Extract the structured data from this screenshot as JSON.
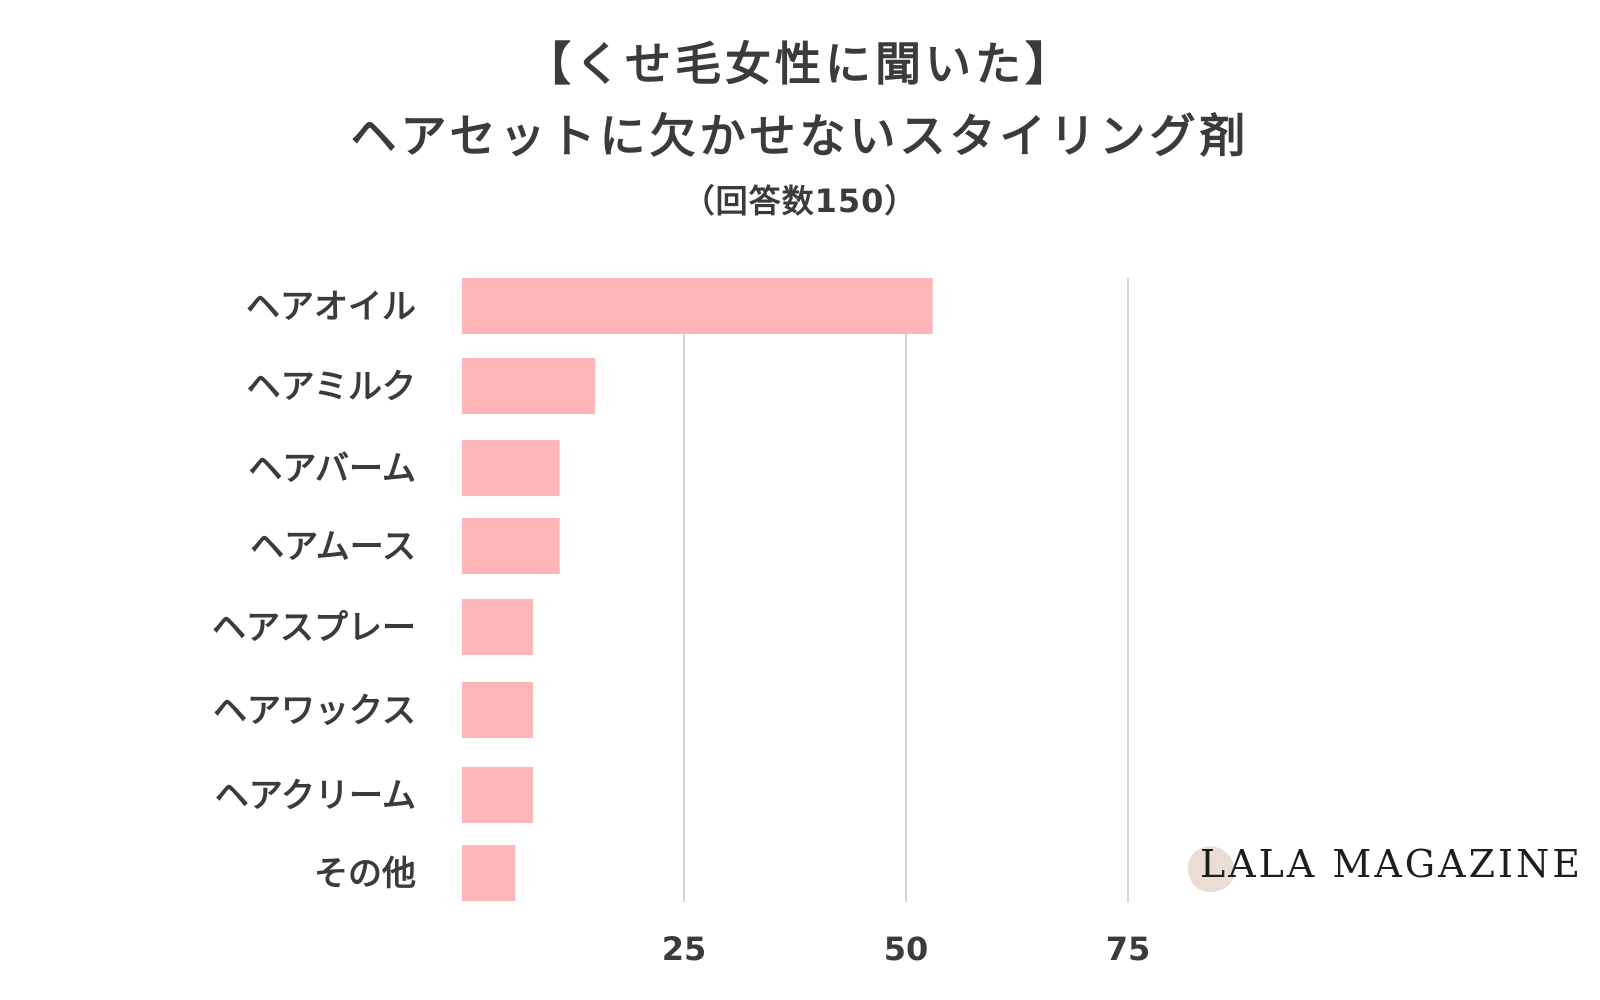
{
  "chart_data": {
    "type": "bar",
    "orientation": "horizontal",
    "title_line1": "【くせ毛女性に聞いた】",
    "title_line2": "ヘアセットに欠かせないスタイリング剤",
    "subtitle": "（回答数150）",
    "categories": [
      "ヘアオイル",
      "ヘアミルク",
      "ヘアバーム",
      "ヘアムース",
      "ヘアスプレー",
      "ヘアワックス",
      "ヘアクリーム",
      "その他"
    ],
    "values": [
      53,
      15,
      11,
      11,
      8,
      8,
      8,
      6
    ],
    "xlim": [
      0,
      100
    ],
    "xticks": [
      25,
      50,
      75
    ],
    "grid": true,
    "bar_color": "#ffb6b9"
  },
  "brand": {
    "logo_text": "LALA MAGAZINE"
  }
}
